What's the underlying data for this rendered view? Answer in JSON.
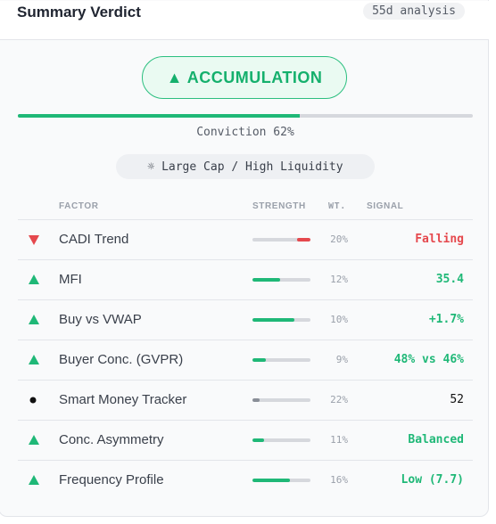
{
  "header": {
    "title": "Summary Verdict",
    "range": "55d analysis"
  },
  "verdict": {
    "label": "▲ ACCUMULATION",
    "color": "#15b06d"
  },
  "conviction": {
    "label": "Conviction 62%",
    "value": 62
  },
  "cap_tag": "☼ Large Cap / High Liquidity",
  "table": {
    "columns": [
      "FACTOR",
      "STRENGTH",
      "WT.",
      "SIGNAL"
    ],
    "rows": [
      {
        "factor": "CADI Trend",
        "strength": 23,
        "weight": "20%",
        "signal": "Falling",
        "trend": "down",
        "color": "#e5484d"
      },
      {
        "factor": "MFI",
        "strength": 47,
        "weight": "12%",
        "signal": "35.4",
        "trend": "up",
        "color": "#1fb877"
      },
      {
        "factor": "Buy vs VWAP",
        "strength": 73,
        "weight": "10%",
        "signal": "+1.7%",
        "trend": "up",
        "color": "#1fb877"
      },
      {
        "factor": "Buyer Conc. (GVPR)",
        "strength": 23,
        "weight": "9%",
        "signal": "48% vs 46%",
        "trend": "up",
        "color": "#1fb877"
      },
      {
        "factor": "Smart Money Tracker",
        "strength": 12,
        "weight": "22%",
        "signal": "52",
        "trend": "neutral",
        "color": "#111111"
      },
      {
        "factor": "Conc. Asymmetry",
        "strength": 20,
        "weight": "11%",
        "signal": "Balanced",
        "trend": "up",
        "color": "#1fb877"
      },
      {
        "factor": "Frequency Profile",
        "strength": 65,
        "weight": "16%",
        "signal": "Low (7.7)",
        "trend": "up",
        "color": "#1fb877"
      }
    ]
  }
}
